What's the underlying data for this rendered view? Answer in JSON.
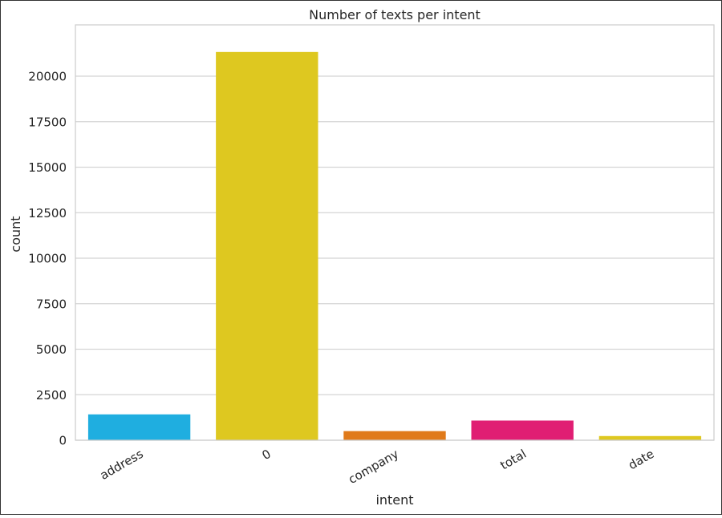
{
  "chart_data": {
    "type": "bar",
    "title": "Number of texts per intent",
    "xlabel": "intent",
    "ylabel": "count",
    "categories": [
      "address",
      "0",
      "company",
      "total",
      "date"
    ],
    "values": [
      1420,
      21330,
      500,
      1080,
      230
    ],
    "colors": [
      "#1FAEE0",
      "#DEC820",
      "#E07A1A",
      "#E01E73",
      "#DEC820"
    ],
    "yticks": [
      0,
      2500,
      5000,
      7500,
      10000,
      12500,
      15000,
      17500,
      20000
    ],
    "ylim": [
      0,
      22820
    ],
    "grid": true,
    "legend": "none"
  }
}
